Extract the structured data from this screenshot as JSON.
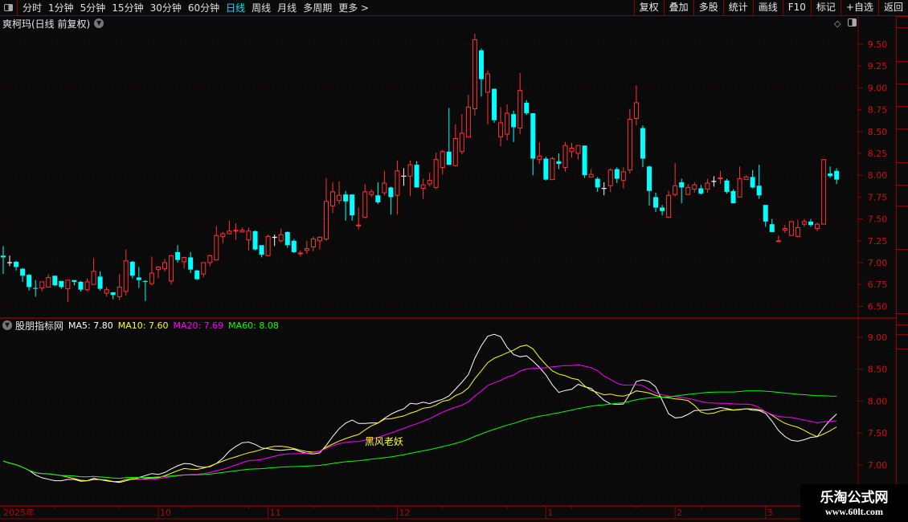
{
  "topbar": {
    "periods": [
      "分时",
      "1分钟",
      "5分钟",
      "15分钟",
      "30分钟",
      "60分钟",
      "日线",
      "周线",
      "月线",
      "多周期",
      "更多 >"
    ],
    "active_period": "日线",
    "buttons": [
      "复权",
      "叠加",
      "多股",
      "统计",
      "画线",
      "F10",
      "标记",
      "+自选",
      "返回"
    ]
  },
  "title": "爽柯玛(日线 前复权)",
  "indicator": {
    "name": "股朋指标网",
    "ma5": "MA5: 7.80",
    "ma10": "MA10: 7.60",
    "ma20": "MA20: 7.69",
    "ma60": "MA60: 8.08",
    "annotation": "黑风老妖"
  },
  "watermark": {
    "name": "乐淘公式网",
    "url": "www.60lt.com"
  },
  "colors": {
    "up": "#ff3333",
    "down": "#00ffff",
    "flat": "#ffffff",
    "ma5": "#ffffff",
    "ma10": "#ffff00",
    "ma20": "#ff00ff",
    "ma60": "#00ff00",
    "axis": "#8b0000",
    "tick": "#d01010",
    "active_period": "#00e5ff"
  },
  "chart_data": [
    {
      "type": "candlestick",
      "title": "爽柯玛(日线 前复权)",
      "ylim": [
        6.4,
        9.7
      ],
      "yticks": [
        "9.50",
        "9.25",
        "9.00",
        "8.75",
        "8.50",
        "8.25",
        "8.00",
        "7.75",
        "7.50",
        "7.25",
        "7.00",
        "6.75",
        "6.50"
      ],
      "grid": true,
      "candles_ohlc": [
        [
          7.08,
          7.19,
          6.87,
          7.06
        ],
        [
          7.0,
          7.08,
          6.96,
          7.0
        ],
        [
          7.01,
          7.02,
          6.91,
          6.95
        ],
        [
          6.93,
          6.94,
          6.78,
          6.85
        ],
        [
          6.86,
          6.87,
          6.68,
          6.72
        ],
        [
          6.71,
          6.8,
          6.61,
          6.7
        ],
        [
          6.71,
          6.78,
          6.67,
          6.78
        ],
        [
          6.72,
          6.87,
          6.72,
          6.83
        ],
        [
          6.85,
          6.85,
          6.73,
          6.74
        ],
        [
          6.79,
          6.79,
          6.7,
          6.72
        ],
        [
          6.7,
          6.8,
          6.55,
          6.8
        ],
        [
          6.8,
          6.8,
          6.74,
          6.78
        ],
        [
          6.78,
          6.79,
          6.67,
          6.69
        ],
        [
          6.69,
          6.82,
          6.67,
          6.78
        ],
        [
          6.75,
          7.05,
          6.75,
          6.9
        ],
        [
          6.84,
          6.9,
          6.68,
          6.7
        ],
        [
          6.65,
          6.72,
          6.61,
          6.69
        ],
        [
          6.66,
          6.66,
          6.58,
          6.63
        ],
        [
          6.61,
          6.87,
          6.57,
          6.72
        ],
        [
          6.67,
          7.15,
          6.62,
          7.02
        ],
        [
          7.01,
          7.02,
          6.82,
          6.85
        ],
        [
          6.83,
          6.95,
          6.71,
          6.8
        ],
        [
          6.79,
          6.8,
          6.56,
          6.78
        ],
        [
          6.76,
          7.07,
          6.74,
          6.88
        ],
        [
          6.92,
          6.96,
          6.82,
          6.95
        ],
        [
          6.93,
          7.04,
          6.9,
          7.0
        ],
        [
          6.79,
          7.08,
          6.75,
          7.08
        ],
        [
          7.12,
          7.2,
          7.0,
          7.03
        ],
        [
          7.01,
          7.06,
          6.93,
          7.06
        ],
        [
          7.06,
          7.12,
          6.88,
          6.92
        ],
        [
          6.91,
          6.92,
          6.8,
          6.81
        ],
        [
          6.87,
          7.0,
          6.83,
          7.0
        ],
        [
          7.0,
          7.09,
          6.96,
          7.08
        ],
        [
          7.03,
          7.42,
          7.03,
          7.31
        ],
        [
          7.3,
          7.35,
          7.22,
          7.33
        ],
        [
          7.33,
          7.48,
          7.33,
          7.36
        ],
        [
          7.36,
          7.45,
          7.26,
          7.37
        ],
        [
          7.35,
          7.4,
          7.35,
          7.37
        ],
        [
          7.26,
          7.4,
          7.14,
          7.36
        ],
        [
          7.36,
          7.37,
          7.14,
          7.15
        ],
        [
          7.2,
          7.2,
          7.06,
          7.09
        ],
        [
          7.08,
          7.32,
          7.08,
          7.3
        ],
        [
          7.29,
          7.32,
          7.19,
          7.29
        ],
        [
          7.25,
          7.39,
          7.23,
          7.32
        ],
        [
          7.35,
          7.36,
          7.17,
          7.2
        ],
        [
          7.25,
          7.27,
          7.11,
          7.12
        ],
        [
          7.1,
          7.14,
          7.07,
          7.11
        ],
        [
          7.14,
          7.25,
          7.1,
          7.16
        ],
        [
          7.18,
          7.3,
          7.13,
          7.27
        ],
        [
          7.25,
          7.3,
          7.15,
          7.29
        ],
        [
          7.27,
          7.97,
          7.25,
          7.7
        ],
        [
          7.65,
          7.92,
          7.57,
          7.81
        ],
        [
          7.71,
          7.93,
          7.67,
          7.77
        ],
        [
          7.78,
          7.82,
          7.48,
          7.7
        ],
        [
          7.78,
          7.78,
          7.48,
          7.54
        ],
        [
          7.42,
          7.63,
          7.38,
          7.43
        ],
        [
          7.52,
          7.9,
          7.52,
          7.81
        ],
        [
          7.78,
          7.84,
          7.75,
          7.81
        ],
        [
          7.77,
          7.92,
          7.67,
          7.69
        ],
        [
          7.8,
          8.05,
          7.77,
          7.91
        ],
        [
          7.86,
          7.87,
          7.55,
          7.75
        ],
        [
          7.77,
          8.17,
          7.55,
          8.05
        ],
        [
          7.99,
          8.08,
          7.88,
          7.99
        ],
        [
          7.99,
          8.17,
          7.76,
          8.12
        ],
        [
          8.12,
          8.16,
          7.86,
          7.86
        ],
        [
          7.85,
          7.96,
          7.73,
          7.89
        ],
        [
          7.9,
          8.03,
          7.87,
          7.94
        ],
        [
          7.86,
          8.26,
          7.84,
          8.18
        ],
        [
          8.09,
          8.29,
          8.01,
          8.27
        ],
        [
          8.27,
          8.77,
          8.12,
          8.12
        ],
        [
          8.11,
          8.58,
          8.1,
          8.42
        ],
        [
          8.27,
          8.7,
          8.24,
          8.48
        ],
        [
          8.44,
          8.92,
          8.44,
          8.78
        ],
        [
          8.76,
          9.62,
          8.68,
          9.55
        ],
        [
          9.43,
          9.45,
          8.9,
          9.1
        ],
        [
          8.95,
          9.2,
          8.58,
          9.16
        ],
        [
          8.99,
          8.99,
          8.6,
          8.63
        ],
        [
          8.44,
          8.78,
          8.33,
          8.6
        ],
        [
          8.47,
          8.81,
          8.4,
          8.71
        ],
        [
          8.7,
          8.74,
          8.38,
          8.55
        ],
        [
          8.54,
          9.17,
          8.47,
          8.97
        ],
        [
          8.83,
          8.86,
          8.69,
          8.71
        ],
        [
          8.71,
          8.71,
          8.0,
          8.19
        ],
        [
          8.18,
          8.38,
          8.13,
          8.22
        ],
        [
          8.19,
          8.21,
          7.94,
          7.95
        ],
        [
          7.95,
          8.21,
          7.95,
          8.19
        ],
        [
          8.16,
          8.25,
          8.07,
          8.13
        ],
        [
          8.09,
          8.38,
          8.04,
          8.34
        ],
        [
          8.27,
          8.37,
          8.2,
          8.31
        ],
        [
          8.25,
          8.34,
          8.18,
          8.34
        ],
        [
          8.34,
          8.34,
          7.97,
          8.0
        ],
        [
          7.98,
          8.07,
          7.98,
          8.01
        ],
        [
          7.96,
          7.98,
          7.81,
          7.86
        ],
        [
          7.85,
          7.92,
          7.77,
          7.85
        ],
        [
          7.88,
          8.08,
          7.81,
          8.06
        ],
        [
          8.07,
          8.09,
          7.91,
          7.96
        ],
        [
          7.94,
          8.09,
          7.85,
          8.04
        ],
        [
          8.06,
          8.76,
          8.02,
          8.64
        ],
        [
          8.65,
          9.03,
          8.57,
          8.83
        ],
        [
          8.54,
          8.57,
          8.09,
          8.19
        ],
        [
          8.1,
          8.11,
          7.65,
          7.82
        ],
        [
          7.75,
          7.8,
          7.58,
          7.63
        ],
        [
          7.63,
          7.66,
          7.54,
          7.59
        ],
        [
          7.52,
          7.82,
          7.51,
          7.77
        ],
        [
          7.78,
          8.14,
          7.76,
          7.88
        ],
        [
          7.92,
          7.96,
          7.68,
          7.86
        ],
        [
          7.78,
          7.9,
          7.78,
          7.86
        ],
        [
          7.84,
          7.92,
          7.8,
          7.89
        ],
        [
          7.85,
          7.89,
          7.78,
          7.79
        ],
        [
          7.84,
          7.96,
          7.8,
          7.91
        ],
        [
          7.93,
          7.99,
          7.87,
          7.93
        ],
        [
          7.96,
          8.05,
          7.9,
          7.97
        ],
        [
          7.94,
          7.96,
          7.79,
          7.81
        ],
        [
          7.82,
          7.84,
          7.68,
          7.68
        ],
        [
          7.75,
          8.1,
          7.75,
          7.96
        ],
        [
          7.95,
          8.0,
          7.95,
          7.98
        ],
        [
          7.98,
          8.06,
          7.85,
          7.86
        ],
        [
          7.88,
          8.12,
          7.73,
          7.77
        ],
        [
          7.66,
          7.66,
          7.41,
          7.47
        ],
        [
          7.44,
          7.5,
          7.35,
          7.35
        ],
        [
          7.24,
          7.31,
          7.24,
          7.25
        ],
        [
          7.37,
          7.43,
          7.34,
          7.39
        ],
        [
          7.31,
          7.47,
          7.31,
          7.47
        ],
        [
          7.3,
          7.49,
          7.29,
          7.4
        ],
        [
          7.44,
          7.5,
          7.41,
          7.47
        ],
        [
          7.47,
          7.5,
          7.41,
          7.43
        ],
        [
          7.39,
          7.46,
          7.36,
          7.44
        ],
        [
          7.44,
          8.18,
          7.44,
          8.18
        ],
        [
          8.02,
          8.1,
          7.97,
          7.99
        ],
        [
          8.05,
          8.08,
          7.9,
          7.95
        ]
      ],
      "xticks": [
        {
          "label": "2025年",
          "index": 0
        },
        {
          "label": "10",
          "index": 24
        },
        {
          "label": "11",
          "index": 41
        },
        {
          "label": "12",
          "index": 61
        },
        {
          "label": "1",
          "index": 84
        },
        {
          "label": "2",
          "index": 104
        },
        {
          "label": "3",
          "index": 118
        }
      ]
    },
    {
      "type": "line",
      "title": "股朋指标网",
      "ylim": [
        6.75,
        9.25
      ],
      "yticks": [
        "9.00",
        "8.50",
        "8.00",
        "7.50",
        "7.00"
      ],
      "series": [
        {
          "name": "MA5",
          "period": 5
        },
        {
          "name": "MA10",
          "period": 10
        },
        {
          "name": "MA20",
          "period": 20
        },
        {
          "name": "MA60",
          "period": 60
        }
      ]
    }
  ]
}
